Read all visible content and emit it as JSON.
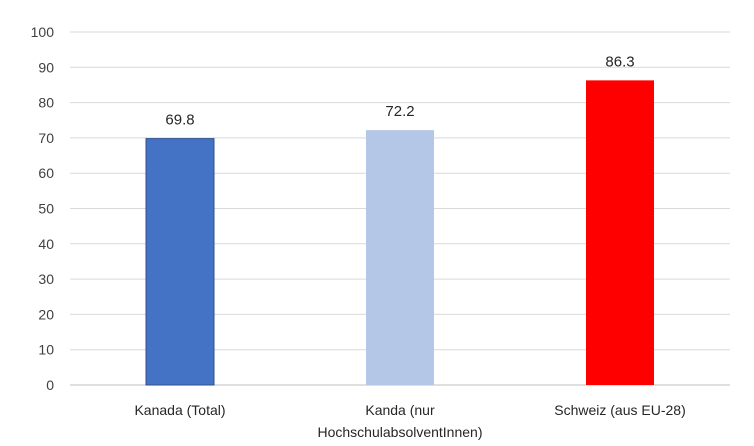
{
  "chart_data": {
    "type": "bar",
    "title": "",
    "xlabel": "",
    "ylabel": "",
    "ylim": [
      0,
      100
    ],
    "yticks": [
      0,
      10,
      20,
      30,
      40,
      50,
      60,
      70,
      80,
      90,
      100
    ],
    "grid": true,
    "legend": "none",
    "categories": [
      [
        "Kanada (Total)"
      ],
      [
        "Kanda (nur",
        "HochschulabsolventInnen)"
      ],
      [
        "Schweiz (aus EU-28)"
      ]
    ],
    "values": [
      69.8,
      72.2,
      86.3
    ],
    "value_labels": [
      "69.8",
      "72.2",
      "86.3"
    ],
    "colors": [
      "#4472C4",
      "#B4C7E7",
      "#FF0000"
    ]
  }
}
